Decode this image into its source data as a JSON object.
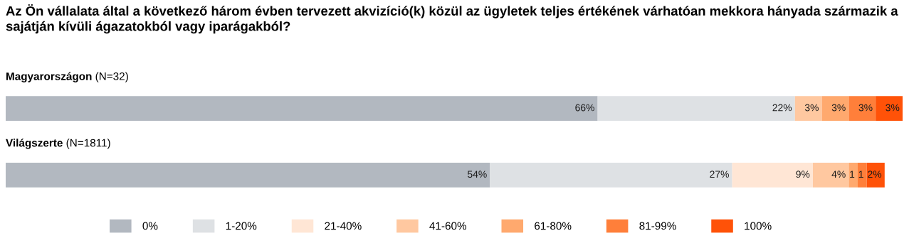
{
  "chart_data": {
    "type": "bar",
    "orientation": "horizontal",
    "stacked": true,
    "title": "Az Ön vállalata által a következő három évben tervezett akvizíció(k) közül az ügyletek teljes értékének várhatóan mekkora hányada származik a sajátján kívüli ágazatokból vagy iparágakból?",
    "categories": [
      "Magyarországon (N=32)",
      "Világszerte (N=1811)"
    ],
    "series": [
      {
        "name": "0%",
        "color": "#b2b8c0",
        "values": [
          66,
          54
        ],
        "value_labels": [
          "66%",
          "54%"
        ]
      },
      {
        "name": "1-20%",
        "color": "#dee1e4",
        "values": [
          22,
          27
        ],
        "value_labels": [
          "22%",
          "27%"
        ]
      },
      {
        "name": "21-40%",
        "color": "#ffe6d5",
        "values": [
          0,
          9
        ],
        "value_labels": [
          null,
          "9%"
        ]
      },
      {
        "name": "41-60%",
        "color": "#ffc8a0",
        "values": [
          3,
          4
        ],
        "value_labels": [
          "3%",
          "4%"
        ]
      },
      {
        "name": "61-80%",
        "color": "#ffa96e",
        "values": [
          3,
          1
        ],
        "value_labels": [
          "3%",
          "1"
        ]
      },
      {
        "name": "81-99%",
        "color": "#ff7f3a",
        "values": [
          3,
          1
        ],
        "value_labels": [
          "3%",
          "1"
        ]
      },
      {
        "name": "100%",
        "color": "#ff5208",
        "values": [
          3,
          2
        ],
        "value_labels": [
          "3%",
          "2%"
        ]
      }
    ],
    "legend": "bottom",
    "tick_labels": false
  }
}
